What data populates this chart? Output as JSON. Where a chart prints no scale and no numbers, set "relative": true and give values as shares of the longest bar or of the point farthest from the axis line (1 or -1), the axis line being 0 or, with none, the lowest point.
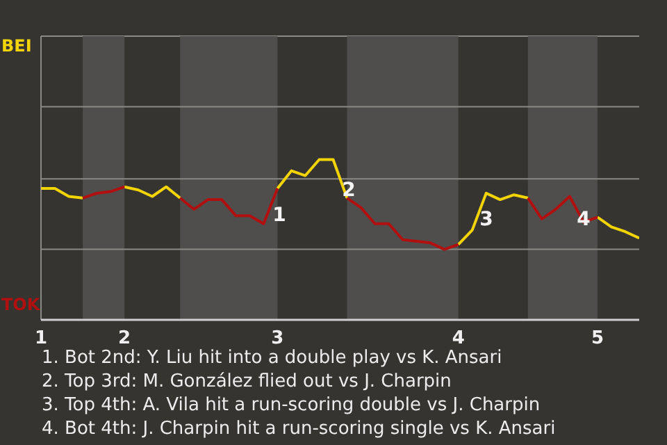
{
  "chart_data": {
    "type": "line",
    "relative": true,
    "legend": "left",
    "line_style": "solid",
    "marker": "none",
    "categories": [
      "1",
      null,
      null,
      null,
      null,
      null,
      "2",
      null,
      null,
      null,
      null,
      null,
      null,
      null,
      null,
      null,
      null,
      "3",
      null,
      null,
      null,
      null,
      null,
      null,
      null,
      null,
      null,
      null,
      null,
      null,
      "4",
      null,
      null,
      null,
      null,
      null,
      null,
      null,
      null,
      null,
      "5",
      null,
      null,
      null
    ],
    "series": [
      {
        "name": "BEI",
        "color": "#f2d500",
        "values": [
          0.82,
          0.82,
          0.77,
          0.76,
          null,
          null,
          0.83,
          0.81,
          0.77,
          0.83,
          0.76,
          null,
          null,
          null,
          null,
          null,
          null,
          0.82,
          0.93,
          0.9,
          1,
          1,
          0.76,
          null,
          null,
          null,
          null,
          null,
          null,
          null,
          0.47,
          0.56,
          0.79,
          0.75,
          0.78,
          0.76,
          null,
          null,
          null,
          null,
          0.64,
          0.58,
          0.55,
          0.51
        ]
      },
      {
        "name": "TOK",
        "color": "#b01010",
        "values": [
          null,
          null,
          null,
          0.76,
          0.79,
          0.8,
          0.83,
          null,
          null,
          null,
          0.76,
          0.69,
          0.75,
          0.75,
          0.65,
          0.65,
          0.6,
          0.82,
          null,
          null,
          null,
          null,
          0.76,
          0.7,
          0.6,
          0.6,
          0.5,
          0.49,
          0.48,
          0.44,
          0.47,
          null,
          null,
          null,
          null,
          0.76,
          0.63,
          0.69,
          0.77,
          0.61,
          0.64,
          null,
          null,
          null
        ]
      }
    ],
    "ref_lines": [
      {
        "axis": "y",
        "value": 0.44,
        "color": "#8a8985"
      },
      {
        "axis": "y",
        "value": 0.88,
        "color": "#8a8985"
      },
      {
        "axis": "y",
        "value": 1.33,
        "color": "#8a8985"
      }
    ],
    "annotations": [
      "1",
      "2",
      "3",
      "4",
      "1. Bot 2nd: Y. Liu hit into a double play vs K. Ansari",
      "2. Top 3rd: M. González flied out vs J. Charpin",
      "3. Top 4th: A. Vila hit a run-scoring double vs J. Charpin",
      "4. Bot 4th: J. Charpin hit a run-scoring single vs K. Ansari"
    ]
  }
}
